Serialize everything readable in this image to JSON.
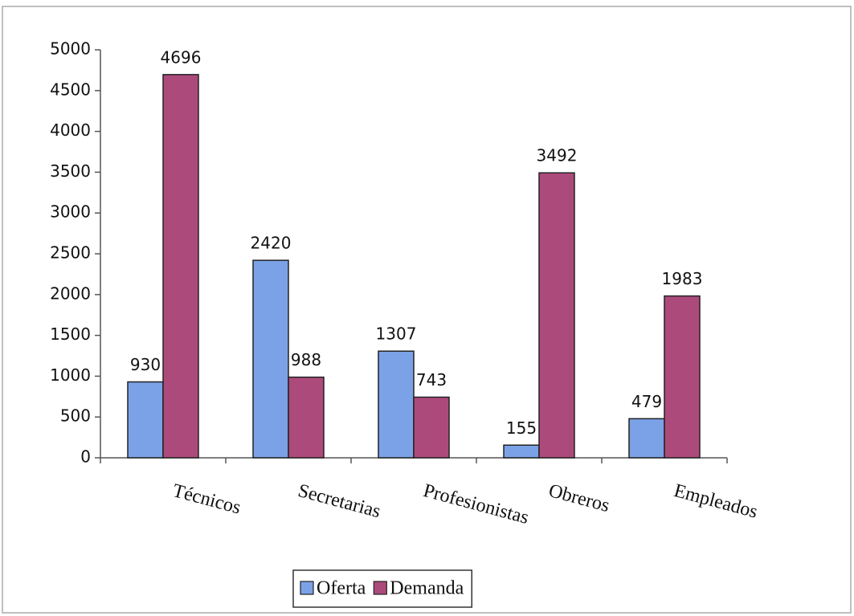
{
  "chart_data": {
    "type": "bar",
    "categories": [
      "Técnicos",
      "Secretarias",
      "Profesionistas",
      "Obreros",
      "Empleados"
    ],
    "series": [
      {
        "name": "Oferta",
        "color": "#7ba2e6",
        "values": [
          930,
          2420,
          1307,
          155,
          479
        ]
      },
      {
        "name": "Demanda",
        "color": "#ad4a7c",
        "values": [
          4696,
          988,
          743,
          3492,
          1983
        ]
      }
    ],
    "ylim": [
      0,
      5000
    ],
    "yticks": [
      0,
      500,
      1000,
      1500,
      2000,
      2500,
      3000,
      3500,
      4000,
      4500,
      5000
    ],
    "grid": false,
    "legend": "bottom"
  }
}
